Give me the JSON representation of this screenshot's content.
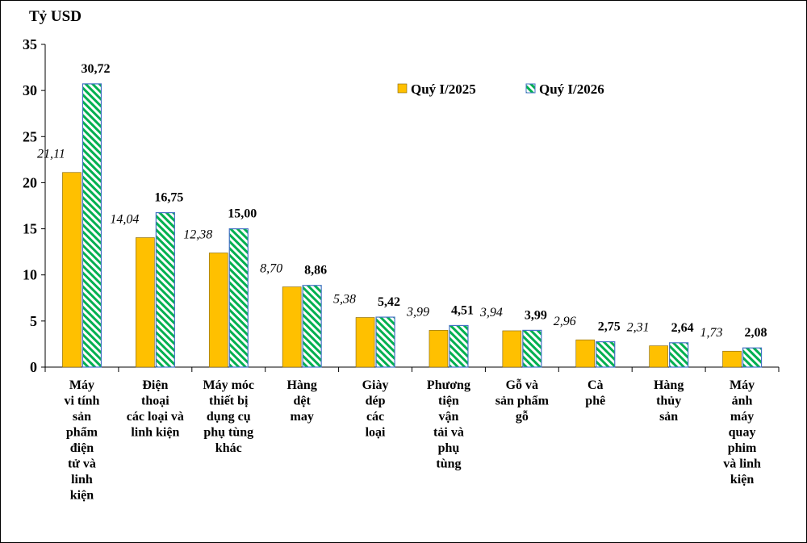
{
  "chart_data": {
    "type": "bar",
    "unit_label": "Tỷ USD",
    "ylim": [
      0,
      35
    ],
    "yticks": [
      0,
      5,
      10,
      15,
      20,
      25,
      30,
      35
    ],
    "legend_position": "top-right",
    "categories": [
      [
        "Máy",
        "vi tính",
        "sản",
        "phẩm",
        "điện",
        "tử và",
        "linh",
        "kiện"
      ],
      [
        "Điện",
        "thoại",
        "các loại và",
        "linh kiện"
      ],
      [
        "Máy móc",
        "thiết bị",
        "dụng cụ",
        "phụ tùng",
        "khác"
      ],
      [
        "Hàng",
        "dệt",
        "may"
      ],
      [
        "Giày",
        "dép",
        "các",
        "loại"
      ],
      [
        "Phương",
        "tiện",
        "vận",
        "tải và",
        "phụ",
        "tùng"
      ],
      [
        "Gỗ và",
        "sản phẩm",
        "gỗ"
      ],
      [
        "Cà",
        "phê"
      ],
      [
        "Hàng",
        "thủy",
        "sản"
      ],
      [
        "Máy",
        "ảnh",
        "máy",
        "quay",
        "phim",
        "và linh",
        "kiện"
      ]
    ],
    "series": [
      {
        "name": "Quý I/2025",
        "color": "#FFC000",
        "values": [
          21.11,
          14.04,
          12.38,
          8.7,
          5.38,
          3.99,
          3.94,
          2.96,
          2.31,
          1.73
        ],
        "labels": [
          "21,11",
          "14,04",
          "12,38",
          "8,70",
          "5,38",
          "3,99",
          "3,94",
          "2,96",
          "2,31",
          "1,73"
        ]
      },
      {
        "name": "Quý I/2026",
        "color": "#00B050",
        "pattern": "diagonal-hatch",
        "values": [
          30.72,
          16.75,
          15.0,
          8.86,
          5.42,
          4.51,
          3.99,
          2.75,
          2.64,
          2.08
        ],
        "labels": [
          "30,72",
          "16,75",
          "15,00",
          "8,86",
          "5,42",
          "4,51",
          "3,99",
          "2,75",
          "2,64",
          "2,08"
        ]
      }
    ]
  }
}
